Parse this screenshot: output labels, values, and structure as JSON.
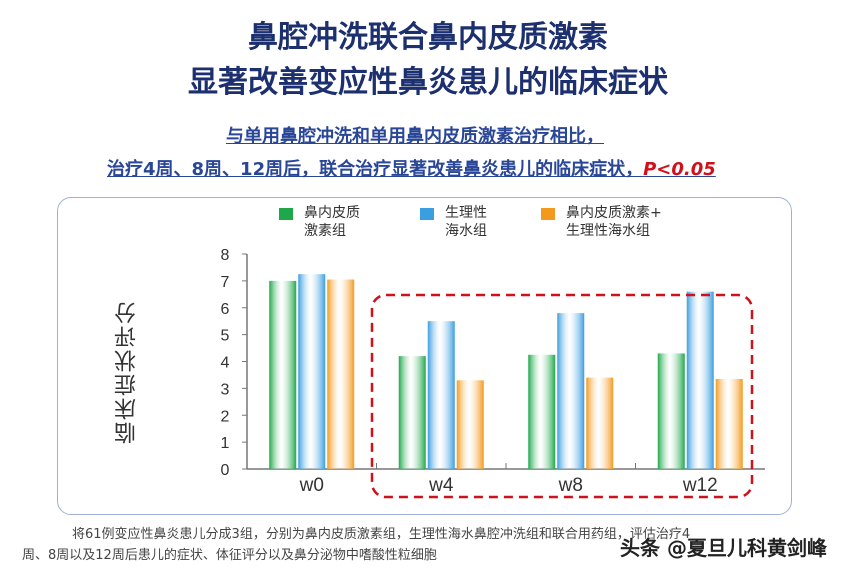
{
  "title": {
    "line1": "鼻腔冲洗联合鼻内皮质激素",
    "line2": "显著改善变应性鼻炎患儿的临床症状"
  },
  "subtitle": {
    "line1": "与单用鼻腔冲洗和单用鼻内皮质激素治疗相比，",
    "line2": "治疗4周、8周、12周后，联合治疗显著改善鼻炎患儿的临床症状，",
    "p_value": "P<0.05"
  },
  "chart_data": {
    "type": "bar",
    "ylabel": "临床症状评分",
    "categories": [
      "w0",
      "w4",
      "w8",
      "w12"
    ],
    "ylim": [
      0,
      8
    ],
    "yticks": [
      "0",
      "1",
      "2",
      "3",
      "4",
      "5",
      "6",
      "7",
      "8"
    ],
    "series": [
      {
        "name": "鼻内皮质激素组",
        "legend_lines": [
          "鼻内皮质",
          "激素组"
        ],
        "color": "#1fa84a",
        "values": [
          7.0,
          4.2,
          4.25,
          4.3
        ]
      },
      {
        "name": "生理性海水组",
        "legend_lines": [
          "生理性",
          "海水组"
        ],
        "color": "#3a9ee0",
        "values": [
          7.25,
          5.5,
          5.8,
          6.6
        ]
      },
      {
        "name": "鼻内皮质激素+生理性海水组",
        "legend_lines": [
          "鼻内皮质激素+",
          "生理性海水组"
        ],
        "color": "#f39a1e",
        "values": [
          7.05,
          3.3,
          3.4,
          3.35
        ]
      }
    ],
    "highlight_color": "#d0101a"
  },
  "footer": {
    "line1": "将61例变应性鼻炎患儿分成3组，分别为鼻内皮质激素组，生理性海水鼻腔冲洗组和联合用药组，评估治疗4",
    "line2": "周、8周以及12周后患儿的症状、体征评分以及鼻分泌物中嗜酸性粒细胞"
  },
  "watermark": "头条 @夏旦儿科黄剑峰"
}
